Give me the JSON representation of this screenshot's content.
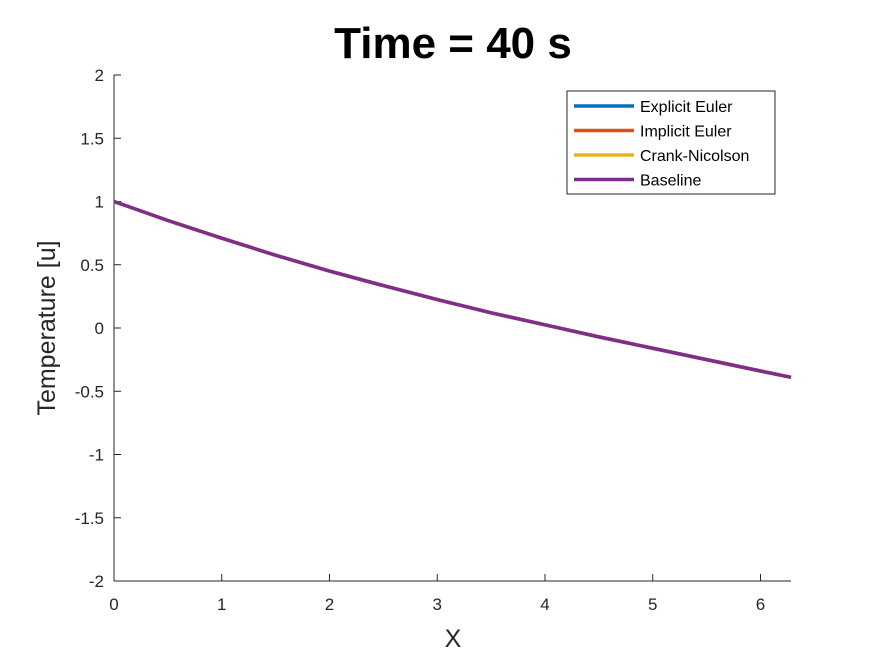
{
  "chart_data": {
    "type": "line",
    "title": "Time = 40 s",
    "xlabel": "X",
    "ylabel": "Temperature [u]",
    "xlim": [
      0,
      6.2832
    ],
    "ylim": [
      -2,
      2
    ],
    "xticks": [
      "0",
      "1",
      "2",
      "3",
      "4",
      "5",
      "6"
    ],
    "yticks": [
      "-2",
      "-1.5",
      "-1",
      "-0.5",
      "0",
      "0.5",
      "1",
      "1.5",
      "2"
    ],
    "grid": false,
    "legend_position": "top-right",
    "x": [
      0,
      0.5,
      1,
      1.5,
      2,
      2.5,
      3,
      3.5,
      4,
      4.5,
      5,
      5.5,
      6,
      6.2832
    ],
    "series": [
      {
        "name": "Explicit Euler",
        "color": "#0072BD",
        "values": [
          1.0,
          0.85,
          0.71,
          0.575,
          0.45,
          0.335,
          0.225,
          0.12,
          0.025,
          -0.07,
          -0.16,
          -0.25,
          -0.34,
          -0.39
        ]
      },
      {
        "name": "Implicit Euler",
        "color": "#D95319",
        "values": [
          1.0,
          0.85,
          0.71,
          0.575,
          0.45,
          0.335,
          0.225,
          0.12,
          0.025,
          -0.07,
          -0.16,
          -0.25,
          -0.34,
          -0.39
        ]
      },
      {
        "name": "Crank-Nicolson",
        "color": "#EDB120",
        "values": [
          1.0,
          0.85,
          0.71,
          0.575,
          0.45,
          0.335,
          0.225,
          0.12,
          0.025,
          -0.07,
          -0.16,
          -0.25,
          -0.34,
          -0.39
        ]
      },
      {
        "name": "Baseline",
        "color": "#7E2F8E",
        "values": [
          1.0,
          0.85,
          0.71,
          0.575,
          0.45,
          0.335,
          0.225,
          0.12,
          0.025,
          -0.07,
          -0.16,
          -0.25,
          -0.34,
          -0.39
        ]
      }
    ]
  }
}
